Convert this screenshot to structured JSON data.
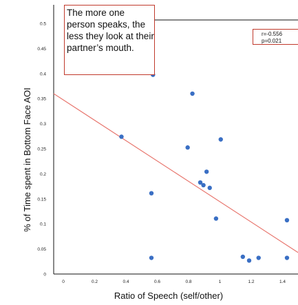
{
  "chart_data": {
    "type": "scatter",
    "xlabel": "Ratio of Speech (self/other)",
    "ylabel": "% of Time spent in Bottom Face AOI",
    "xlim": [
      -0.05,
      1.5
    ],
    "ylim": [
      0,
      0.5
    ],
    "x_ticks": [
      "0",
      "0.2",
      "0.4",
      "0.6",
      "0.8",
      "1",
      "1.2",
      "1.4"
    ],
    "y_ticks": [
      "0",
      "0.05",
      "0.1",
      "0.15",
      "0.2",
      "0.25",
      "0.3",
      "0.35",
      "0.4",
      "0.45",
      "0.5"
    ],
    "points": [
      {
        "x": 0.58,
        "y": 0.37
      },
      {
        "x": 0.83,
        "y": 0.335
      },
      {
        "x": 0.38,
        "y": 0.255
      },
      {
        "x": 0.8,
        "y": 0.235
      },
      {
        "x": 1.01,
        "y": 0.25
      },
      {
        "x": 0.92,
        "y": 0.19
      },
      {
        "x": 0.88,
        "y": 0.17
      },
      {
        "x": 0.9,
        "y": 0.165
      },
      {
        "x": 0.94,
        "y": 0.16
      },
      {
        "x": 0.57,
        "y": 0.15
      },
      {
        "x": 0.98,
        "y": 0.103
      },
      {
        "x": 1.43,
        "y": 0.1
      },
      {
        "x": 0.57,
        "y": 0.03
      },
      {
        "x": 1.15,
        "y": 0.032
      },
      {
        "x": 1.19,
        "y": 0.025
      },
      {
        "x": 1.25,
        "y": 0.03
      },
      {
        "x": 1.43,
        "y": 0.03
      }
    ],
    "trendline": {
      "x": [
        -0.05,
        1.5
      ],
      "y": [
        0.335,
        0.04
      ]
    },
    "annotation": "The more one person speaks, the less they look at their partner’s mouth.",
    "stats": {
      "r": "r=-0.556",
      "p": "p=0.021"
    },
    "colors": {
      "points": "#3a6fc4",
      "trendline": "#e8776f",
      "box_border": "#c0392b"
    }
  }
}
